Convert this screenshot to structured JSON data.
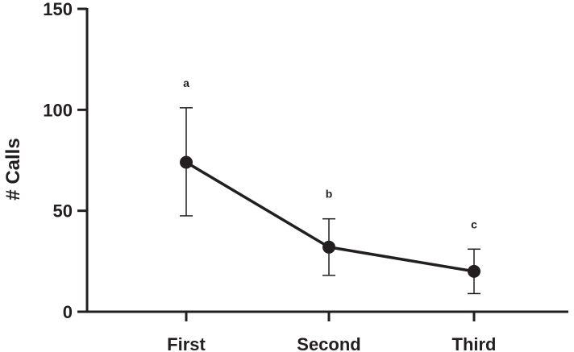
{
  "chart_data": {
    "type": "line",
    "title": "",
    "xlabel": "",
    "ylabel": "# Calls",
    "ylim": [
      0,
      150
    ],
    "yticks": [
      0,
      50,
      100,
      150
    ],
    "categories": [
      "First",
      "Second",
      "Third"
    ],
    "series": [
      {
        "values": [
          74,
          32,
          20
        ],
        "error_low": [
          47.5,
          18,
          9
        ],
        "error_high": [
          101,
          46,
          31
        ]
      }
    ],
    "annotations": [
      "a",
      "b",
      "c"
    ],
    "grid": false,
    "legend": "none",
    "color": "#231f20"
  }
}
